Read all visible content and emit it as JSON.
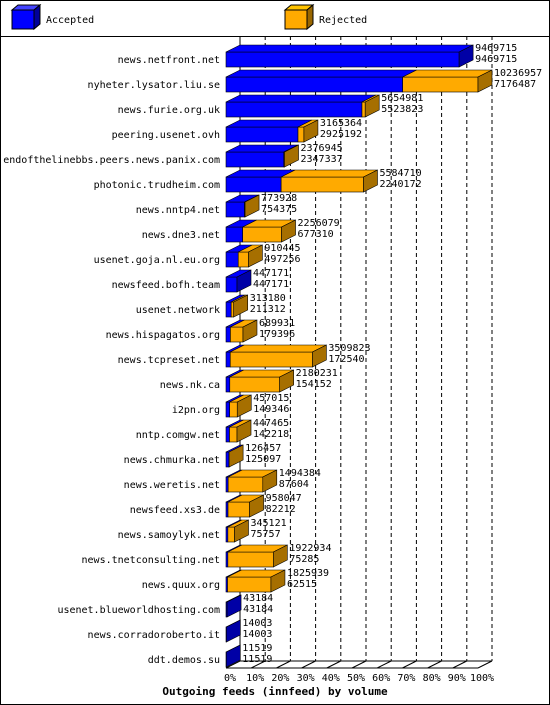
{
  "chart_data": {
    "type": "bar3d-stacked-horizontal",
    "title": "Outgoing feeds (innfeed) by volume",
    "categories": [
      "news.netfront.net",
      "nyheter.lysator.liu.se",
      "news.furie.org.uk",
      "peering.usenet.ovh",
      "endofthelinebbs.peers.news.panix.com",
      "photonic.trudheim.com",
      "news.nntp4.net",
      "news.dne3.net",
      "usenet.goja.nl.eu.org",
      "newsfeed.bofh.team",
      "usenet.network",
      "news.hispagatos.org",
      "news.tcpreset.net",
      "news.nk.ca",
      "i2pn.org",
      "nntp.comgw.net",
      "news.chmurka.net",
      "news.weretis.net",
      "newsfeed.xs3.de",
      "news.samoylyk.net",
      "news.tnetconsulting.net",
      "news.quux.org",
      "usenet.blueworldhosting.com",
      "news.corradoroberto.it",
      "ddt.demos.su"
    ],
    "totals": [
      9469715,
      10236957,
      5654981,
      3165364,
      2376945,
      5584710,
      773928,
      2256079,
      910445,
      447171,
      313180,
      689931,
      3509823,
      2180231,
      457015,
      447465,
      126457,
      1494384,
      958047,
      345121,
      1922934,
      1825939,
      43184,
      14003,
      11519
    ],
    "series": [
      {
        "name": "Accepted",
        "color": "#0000ff",
        "values": [
          9469715,
          7176487,
          5523823,
          2925192,
          2347337,
          2240172,
          754375,
          677310,
          497256,
          447171,
          211312,
          179396,
          172540,
          154152,
          149346,
          142218,
          125097,
          87604,
          82212,
          75757,
          75285,
          62515,
          43184,
          14003,
          11519
        ]
      },
      {
        "name": "Rejected",
        "color": "#ffaa00",
        "values": [
          0,
          3060470,
          131158,
          240172,
          29608,
          3344538,
          19553,
          1578769,
          413189,
          0,
          101868,
          510535,
          3337283,
          2026079,
          307669,
          305247,
          1360,
          1406780,
          875835,
          269364,
          1847649,
          1763424,
          0,
          0,
          0
        ]
      }
    ],
    "xlim": [
      0,
      10236957
    ],
    "xticks": [
      {
        "value": 0,
        "label": "0%"
      },
      {
        "value": 1023695.7,
        "label": "10%"
      },
      {
        "value": 2047391.4,
        "label": "20%"
      },
      {
        "value": 3071087.1,
        "label": "30%"
      },
      {
        "value": 4094782.8,
        "label": "40%"
      },
      {
        "value": 5118478.5,
        "label": "50%"
      },
      {
        "value": 6142174.2,
        "label": "60%"
      },
      {
        "value": 7165869.9,
        "label": "70%"
      },
      {
        "value": 8189565.6,
        "label": "80%"
      },
      {
        "value": 9213261.3,
        "label": "90%"
      },
      {
        "value": 10236957,
        "label": "100%"
      }
    ],
    "grid": true
  }
}
